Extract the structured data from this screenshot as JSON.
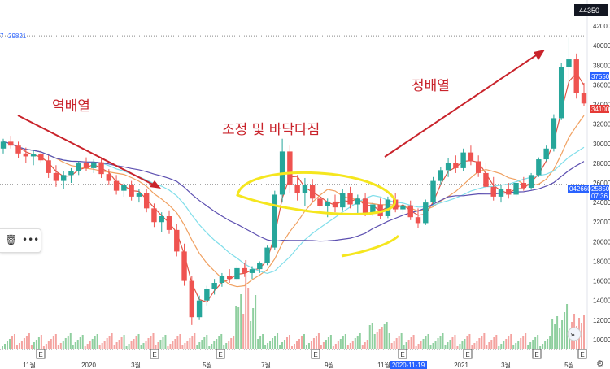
{
  "header": {
    "top_value": "44350",
    "second_value": "29821",
    "second_prefix": "7"
  },
  "annotations": {
    "reverse": "역배열",
    "correction": "조정 및 바닥다짐",
    "forward": "정배열"
  },
  "price_boxes": [
    {
      "value": "37550",
      "color": "#2962ff"
    },
    {
      "value": "34100",
      "color": "#e53935"
    },
    {
      "value": "25850",
      "color": "#2962ff"
    },
    {
      "value": "042660",
      "color": "#2962ff"
    },
    {
      "value": "07:36",
      "color": "#2962ff"
    }
  ],
  "selected_date": "2020-11-19",
  "colors": {
    "up": "#26a69a",
    "down": "#ef5350",
    "annot": "#c9232b",
    "highlight": "#f5e61e",
    "ma_red": "#e05545",
    "ma_orange": "#f0a060",
    "ma_cyan": "#80deea",
    "ma_purple": "#5c4fb0"
  },
  "icons": [
    "trash-icon",
    "more-icon",
    "gear-icon",
    "scroll-icon",
    "earnings-marker-icon"
  ],
  "chart_data": {
    "type": "candlestick",
    "y_ticks": [
      10000,
      12000,
      14000,
      16000,
      18000,
      20000,
      22000,
      24000,
      26000,
      28000,
      30000,
      32000,
      34000,
      36000,
      38000,
      40000,
      42000
    ],
    "ylim": [
      9000,
      43000
    ],
    "x_ticks": [
      "11월",
      "2020",
      "3월",
      "5월",
      "7월",
      "9월",
      "11월",
      "2020-11-19",
      "2021",
      "3월",
      "5월"
    ],
    "earnings_markers": [
      "E",
      "E",
      "E",
      "E",
      "E",
      "E",
      "E",
      "E"
    ],
    "series": [
      {
        "name": "price",
        "points": [
          [
            29500,
            30500,
            29000,
            30200
          ],
          [
            30200,
            30800,
            29500,
            29800
          ],
          [
            29800,
            30200,
            28500,
            29000
          ],
          [
            29000,
            29600,
            28000,
            28700
          ],
          [
            28700,
            29300,
            27800,
            28900
          ],
          [
            28900,
            29400,
            28100,
            28300
          ],
          [
            28300,
            28800,
            26500,
            27000
          ],
          [
            27000,
            27800,
            25600,
            26200
          ],
          [
            26200,
            27200,
            25400,
            26800
          ],
          [
            26800,
            27500,
            26000,
            27200
          ],
          [
            27200,
            28200,
            26800,
            28000
          ],
          [
            28000,
            28600,
            27200,
            27500
          ],
          [
            27500,
            28400,
            27000,
            28100
          ],
          [
            28100,
            28500,
            26500,
            26900
          ],
          [
            26900,
            27400,
            25800,
            26200
          ],
          [
            26200,
            26800,
            24800,
            25200
          ],
          [
            25200,
            26000,
            24600,
            25800
          ],
          [
            25800,
            26200,
            24200,
            24600
          ],
          [
            24600,
            25400,
            24000,
            25000
          ],
          [
            25000,
            25400,
            23000,
            23400
          ],
          [
            23400,
            23900,
            21500,
            22000
          ],
          [
            22000,
            23000,
            21000,
            22600
          ],
          [
            22600,
            23200,
            20800,
            21200
          ],
          [
            21200,
            21800,
            18500,
            19000
          ],
          [
            19000,
            19800,
            15500,
            16000
          ],
          [
            16000,
            16500,
            11500,
            12300
          ],
          [
            12300,
            14500,
            12000,
            14000
          ],
          [
            14000,
            15500,
            13500,
            15200
          ],
          [
            15200,
            16200,
            14600,
            15800
          ],
          [
            15800,
            16800,
            15400,
            16500
          ],
          [
            16500,
            17200,
            15800,
            16200
          ],
          [
            16200,
            17600,
            16000,
            17300
          ],
          [
            17300,
            17800,
            16400,
            16800
          ],
          [
            16800,
            17500,
            16200,
            17200
          ],
          [
            17200,
            18000,
            16800,
            17800
          ],
          [
            17800,
            19600,
            17600,
            19400
          ],
          [
            19400,
            25200,
            19200,
            24800
          ],
          [
            24800,
            30500,
            24000,
            29200
          ],
          [
            29200,
            29800,
            25000,
            25800
          ],
          [
            25800,
            26800,
            24200,
            25000
          ],
          [
            25000,
            26500,
            23600,
            25800
          ],
          [
            25800,
            26400,
            24000,
            24400
          ],
          [
            24400,
            25200,
            23200,
            23600
          ],
          [
            23600,
            24400,
            22500,
            24100
          ],
          [
            24100,
            24800,
            23000,
            23500
          ],
          [
            23500,
            25400,
            23200,
            25000
          ],
          [
            25000,
            25600,
            23400,
            23800
          ],
          [
            23800,
            24800,
            22800,
            24400
          ],
          [
            24400,
            25000,
            22600,
            22900
          ],
          [
            22900,
            24000,
            22600,
            23800
          ],
          [
            23800,
            24400,
            22300,
            22600
          ],
          [
            22600,
            24600,
            22400,
            24300
          ],
          [
            24300,
            25000,
            23000,
            23300
          ],
          [
            23300,
            24100,
            22600,
            23700
          ],
          [
            23700,
            24200,
            22200,
            22500
          ],
          [
            22500,
            23400,
            21400,
            21900
          ],
          [
            21900,
            24300,
            21700,
            24000
          ],
          [
            24000,
            26600,
            23800,
            26200
          ],
          [
            26200,
            27600,
            25800,
            27300
          ],
          [
            27300,
            28500,
            26600,
            28000
          ],
          [
            28000,
            28800,
            27000,
            27500
          ],
          [
            27500,
            29500,
            27200,
            29100
          ],
          [
            29100,
            29800,
            27800,
            28200
          ],
          [
            28200,
            28800,
            26600,
            27000
          ],
          [
            27000,
            28000,
            25200,
            25600
          ],
          [
            25600,
            26600,
            24200,
            24600
          ],
          [
            24600,
            25800,
            24000,
            25400
          ],
          [
            25400,
            26000,
            24400,
            24800
          ],
          [
            24800,
            26200,
            24600,
            26000
          ],
          [
            26000,
            26600,
            25200,
            25500
          ],
          [
            25500,
            27000,
            25300,
            26800
          ],
          [
            26800,
            28600,
            26600,
            28400
          ],
          [
            28400,
            29800,
            28200,
            29500
          ],
          [
            29500,
            33000,
            29200,
            32600
          ],
          [
            32600,
            38200,
            32400,
            37800
          ],
          [
            37800,
            40800,
            36000,
            38600
          ],
          [
            38600,
            39200,
            34600,
            35200
          ],
          [
            35200,
            36200,
            33800,
            34100
          ]
        ]
      }
    ]
  }
}
